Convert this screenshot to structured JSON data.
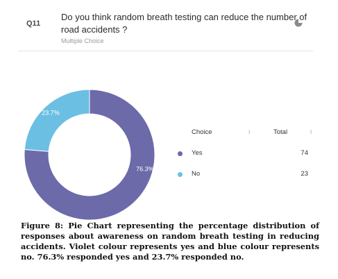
{
  "question": {
    "number": "Q11",
    "text": "Do you think random breath testing can reduce the number of road accidents ?",
    "type": "Multiple Choice",
    "icon": "pie-chart-icon"
  },
  "chart_data": {
    "type": "pie",
    "donut": true,
    "categories": [
      "Yes",
      "No"
    ],
    "values": [
      74,
      23
    ],
    "percent_labels": [
      "76.3%",
      "23.7%"
    ],
    "colors": [
      "#6c6aa9",
      "#6bbfe3"
    ]
  },
  "table": {
    "headers": {
      "choice": "Choice",
      "total": "Total"
    },
    "sort_icon": "sort-arrows-icon",
    "rows": [
      {
        "label": "Yes",
        "total": "74"
      },
      {
        "label": "No",
        "total": "23"
      }
    ]
  },
  "caption": "Figure 8: Pie Chart representing the percentage distribution of responses about awareness on random breath testing in reducing accidents. Violet colour represents yes and blue colour represents no. 76.3% responded yes and 23.7% responded no."
}
